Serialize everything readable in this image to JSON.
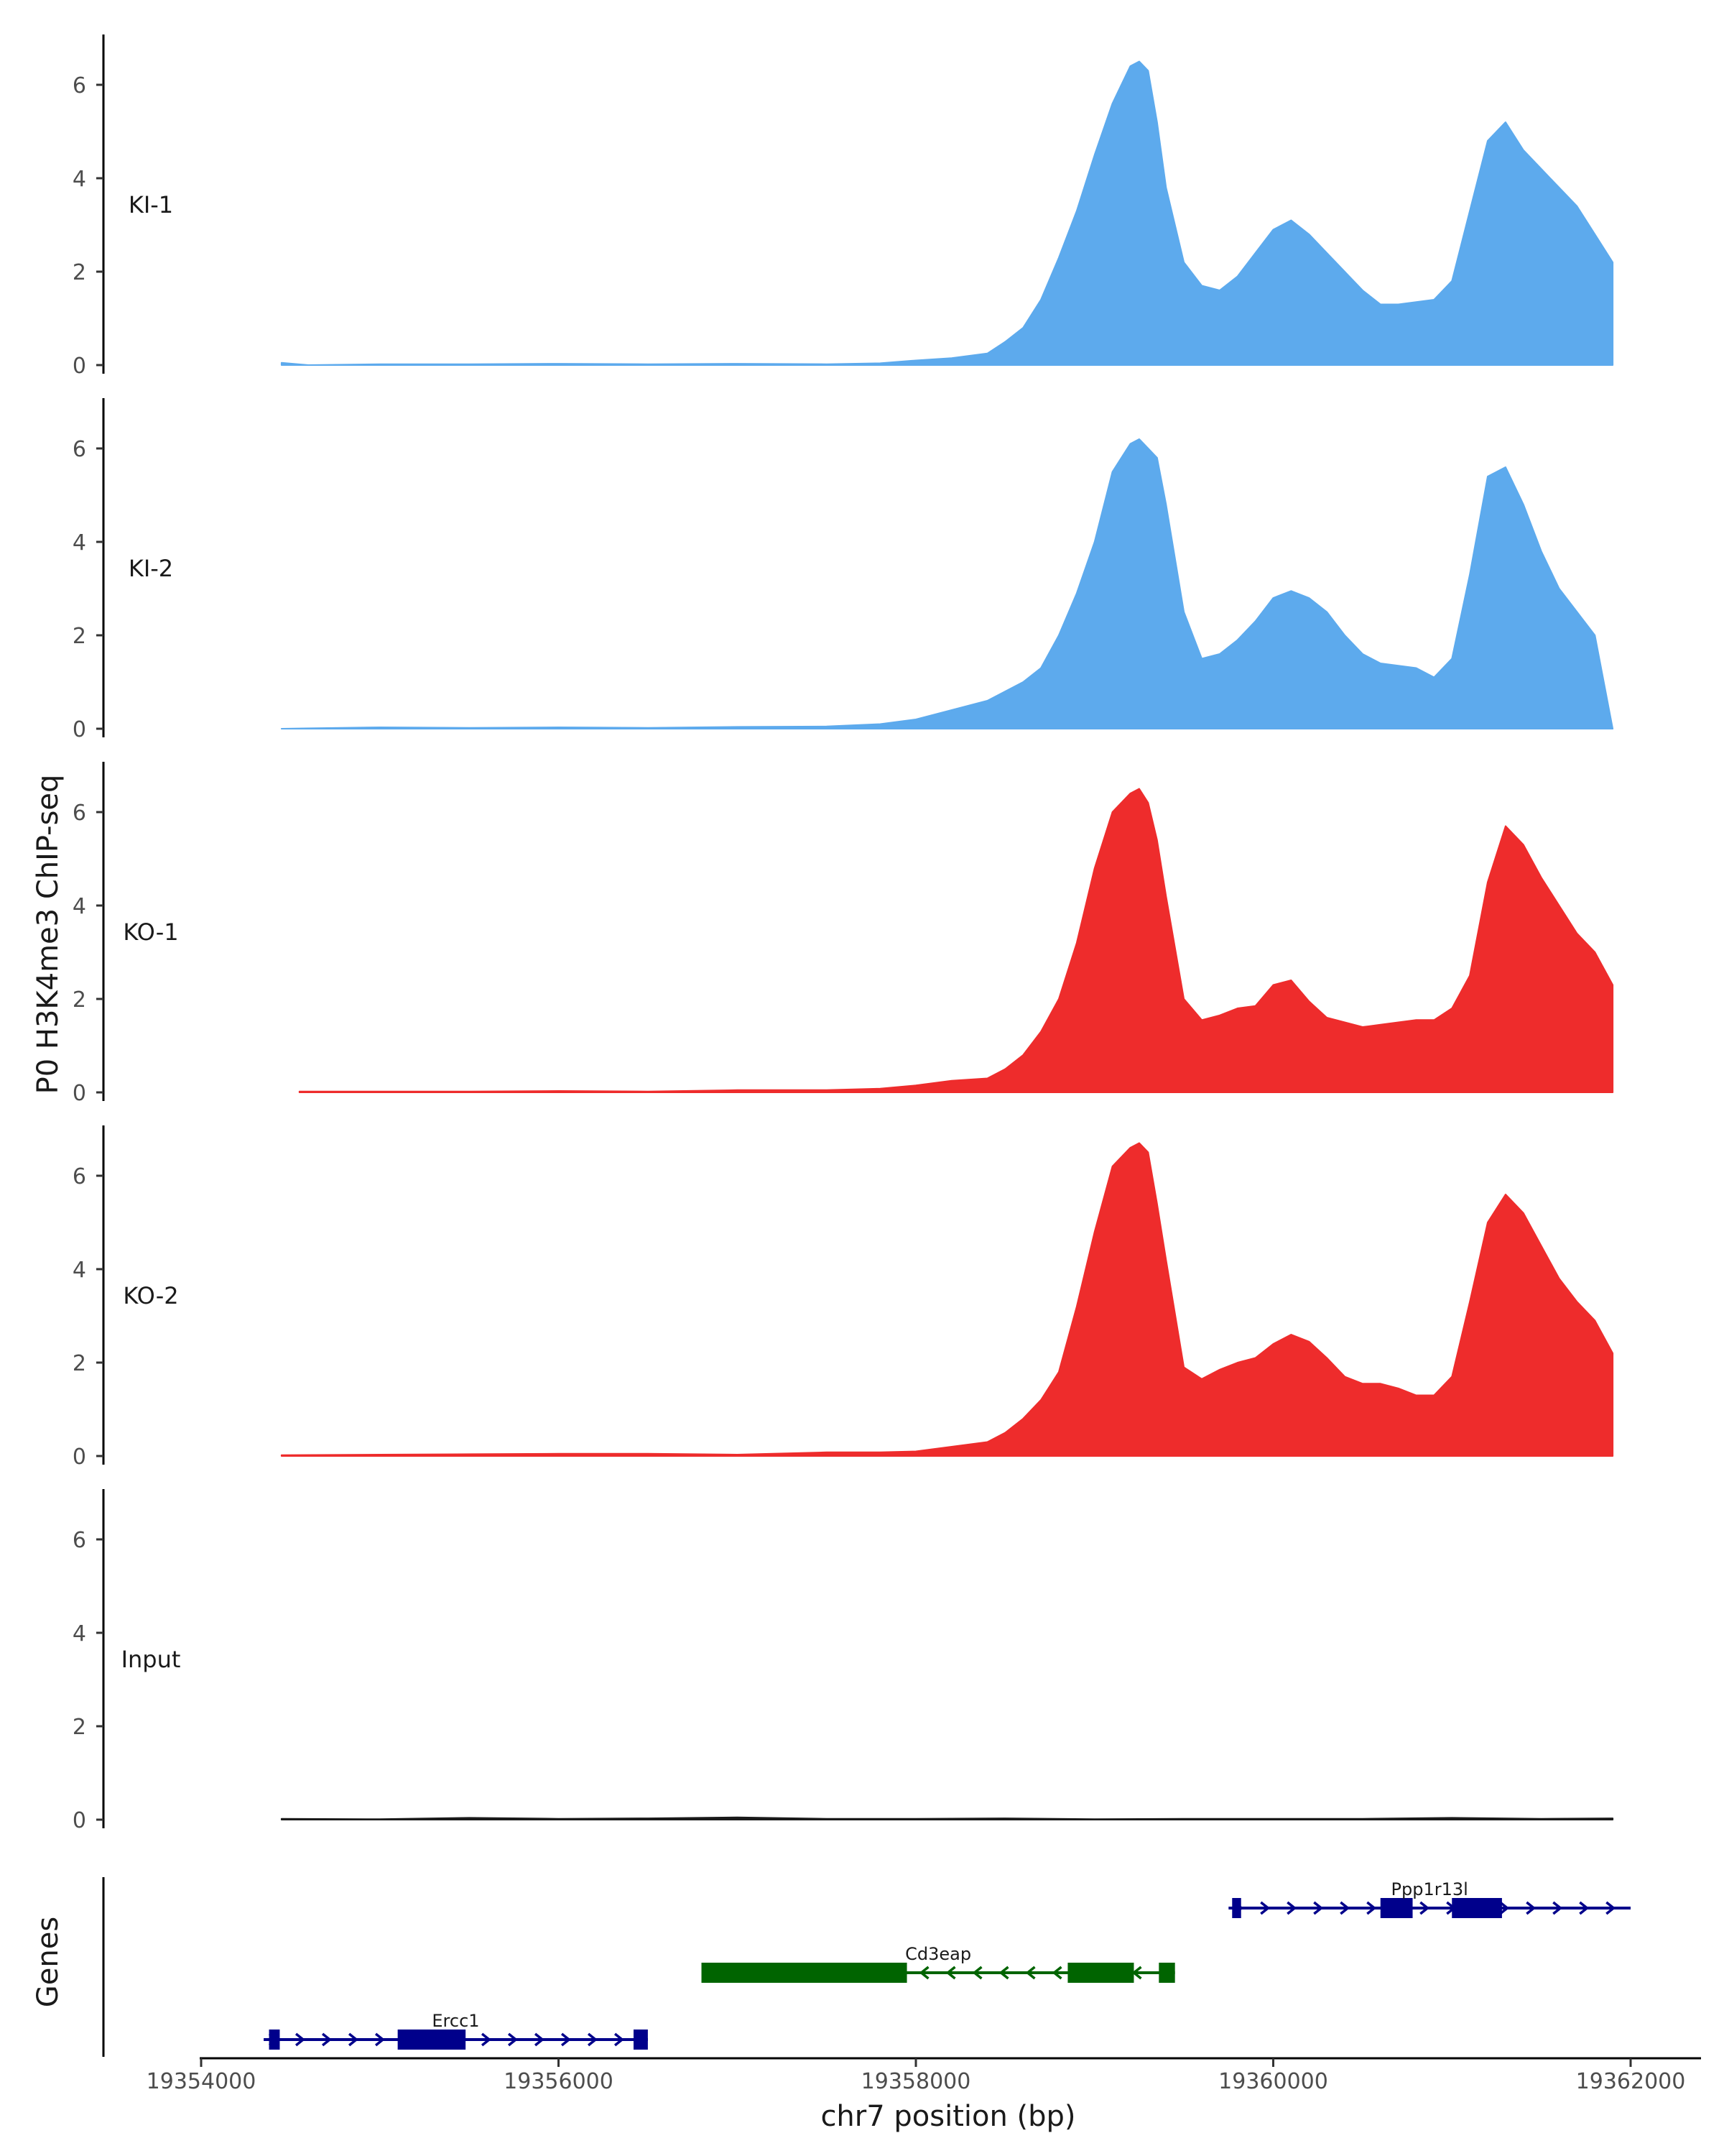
{
  "chart_data": {
    "type": "area",
    "title": "",
    "ylabel": "P0 H3K4me3 ChIP-seq",
    "xlabel": "chr7 position (bp)",
    "genes_label": "Genes",
    "xlim": [
      19353900,
      19362400
    ],
    "ylim": [
      0,
      7
    ],
    "y_ticks": [
      0,
      2,
      4,
      6
    ],
    "x_ticks": [
      19354000,
      19356000,
      19358000,
      19360000,
      19362000
    ],
    "x_tick_labels": [
      "19354000",
      "19356000",
      "19358000",
      "19360000",
      "19362000"
    ],
    "tracks": [
      {
        "name": "KI-1",
        "color": "#5DAAED",
        "x": [
          19354450,
          19354600,
          19355000,
          19355500,
          19356000,
          19356500,
          19357000,
          19357500,
          19357800,
          19358000,
          19358200,
          19358400,
          19358500,
          19358600,
          19358700,
          19358800,
          19358900,
          19359000,
          19359100,
          19359200,
          19359250,
          19359300,
          19359350,
          19359400,
          19359500,
          19359600,
          19359700,
          19359800,
          19359900,
          19360000,
          19360100,
          19360200,
          19360300,
          19360400,
          19360500,
          19360600,
          19360700,
          19360800,
          19360900,
          19361000,
          19361100,
          19361200,
          19361300,
          19361400,
          19361500,
          19361600,
          19361700,
          19361800,
          19361900
        ],
        "y": [
          0.05,
          0,
          0.02,
          0.02,
          0.03,
          0.02,
          0.03,
          0.02,
          0.04,
          0.1,
          0.15,
          0.25,
          0.5,
          0.8,
          1.4,
          2.3,
          3.3,
          4.5,
          5.6,
          6.4,
          6.5,
          6.3,
          5.2,
          3.8,
          2.2,
          1.7,
          1.6,
          1.9,
          2.4,
          2.9,
          3.1,
          2.8,
          2.4,
          2.0,
          1.6,
          1.3,
          1.3,
          1.35,
          1.4,
          1.8,
          3.3,
          4.8,
          5.2,
          4.6,
          4.2,
          3.8,
          3.4,
          2.8,
          2.2
        ]
      },
      {
        "name": "KI-2",
        "color": "#5DAAED",
        "x": [
          19354450,
          19354600,
          19355000,
          19355500,
          19356000,
          19356500,
          19357000,
          19357500,
          19357800,
          19358000,
          19358200,
          19358400,
          19358500,
          19358600,
          19358700,
          19358800,
          19358900,
          19359000,
          19359100,
          19359200,
          19359250,
          19359300,
          19359350,
          19359400,
          19359500,
          19359600,
          19359700,
          19359800,
          19359900,
          19360000,
          19360100,
          19360200,
          19360300,
          19360400,
          19360500,
          19360600,
          19360700,
          19360800,
          19360900,
          19361000,
          19361100,
          19361200,
          19361300,
          19361400,
          19361500,
          19361600,
          19361700,
          19361800,
          19361900
        ],
        "y": [
          0,
          0.01,
          0.03,
          0.02,
          0.03,
          0.02,
          0.04,
          0.05,
          0.1,
          0.2,
          0.4,
          0.6,
          0.8,
          1.0,
          1.3,
          2.0,
          2.9,
          4.0,
          5.5,
          6.1,
          6.2,
          6.0,
          5.8,
          4.8,
          2.5,
          1.5,
          1.6,
          1.9,
          2.3,
          2.8,
          2.95,
          2.8,
          2.5,
          2.0,
          1.6,
          1.4,
          1.35,
          1.3,
          1.1,
          1.5,
          3.3,
          5.4,
          5.6,
          4.8,
          3.8,
          3.0,
          2.5,
          2.0,
          0
        ]
      },
      {
        "name": "KO-1",
        "color": "#EE2C2C",
        "x": [
          19354550,
          19355000,
          19355500,
          19356000,
          19356500,
          19357000,
          19357500,
          19357800,
          19358000,
          19358200,
          19358400,
          19358500,
          19358600,
          19358700,
          19358800,
          19358900,
          19359000,
          19359100,
          19359200,
          19359250,
          19359300,
          19359350,
          19359400,
          19359500,
          19359600,
          19359700,
          19359800,
          19359900,
          19360000,
          19360100,
          19360200,
          19360300,
          19360400,
          19360500,
          19360600,
          19360700,
          19360800,
          19360900,
          19361000,
          19361100,
          19361200,
          19361300,
          19361400,
          19361500,
          19361600,
          19361700,
          19361800,
          19361900
        ],
        "y": [
          0.02,
          0.02,
          0.02,
          0.03,
          0.02,
          0.05,
          0.05,
          0.08,
          0.15,
          0.25,
          0.3,
          0.5,
          0.8,
          1.3,
          2.0,
          3.2,
          4.8,
          6.0,
          6.4,
          6.5,
          6.2,
          5.4,
          4.2,
          2.0,
          1.55,
          1.65,
          1.8,
          1.85,
          2.3,
          2.4,
          1.95,
          1.6,
          1.5,
          1.4,
          1.45,
          1.5,
          1.55,
          1.55,
          1.8,
          2.5,
          4.5,
          5.7,
          5.3,
          4.6,
          4.0,
          3.4,
          3.0,
          2.3
        ]
      },
      {
        "name": "KO-2",
        "color": "#EE2C2C",
        "x": [
          19354450,
          19355000,
          19355500,
          19356000,
          19356500,
          19357000,
          19357500,
          19357800,
          19358000,
          19358200,
          19358400,
          19358500,
          19358600,
          19358700,
          19358800,
          19358900,
          19359000,
          19359100,
          19359200,
          19359250,
          19359300,
          19359350,
          19359400,
          19359500,
          19359600,
          19359700,
          19359800,
          19359900,
          19360000,
          19360100,
          19360200,
          19360300,
          19360400,
          19360500,
          19360600,
          19360700,
          19360800,
          19360900,
          19361000,
          19361100,
          19361200,
          19361300,
          19361400,
          19361500,
          19361600,
          19361700,
          19361800,
          19361900
        ],
        "y": [
          0.02,
          0.03,
          0.04,
          0.05,
          0.05,
          0.03,
          0.08,
          0.08,
          0.1,
          0.2,
          0.3,
          0.5,
          0.8,
          1.2,
          1.8,
          3.2,
          4.8,
          6.2,
          6.6,
          6.7,
          6.5,
          5.4,
          4.2,
          1.9,
          1.65,
          1.85,
          2.0,
          2.1,
          2.4,
          2.6,
          2.45,
          2.1,
          1.7,
          1.55,
          1.55,
          1.45,
          1.3,
          1.3,
          1.7,
          3.3,
          5.0,
          5.6,
          5.2,
          4.5,
          3.8,
          3.3,
          2.9,
          2.2
        ]
      },
      {
        "name": "Input",
        "color": "#1a1a1a",
        "x": [
          19354450,
          19355000,
          19355500,
          19356000,
          19356500,
          19357000,
          19357500,
          19358000,
          19358500,
          19359000,
          19359500,
          19360000,
          19360500,
          19361000,
          19361500,
          19361900
        ],
        "y": [
          0.02,
          0.01,
          0.04,
          0.02,
          0.03,
          0.05,
          0.02,
          0.02,
          0.03,
          0.01,
          0.02,
          0.02,
          0.02,
          0.04,
          0.02,
          0.03
        ]
      }
    ],
    "genes": [
      {
        "name": "Ppp1r13l",
        "strand": "+",
        "color": "#00008B",
        "start": 19359750,
        "end": 19362000,
        "row": 0,
        "exons": [
          [
            19359770,
            19359820
          ],
          [
            19360600,
            19360780
          ],
          [
            19361000,
            19361280
          ]
        ]
      },
      {
        "name": "Cd3eap",
        "strand": "-",
        "color": "#006400",
        "start": 19356800,
        "end": 19359450,
        "row": 1,
        "exons": [
          [
            19356800,
            19357950
          ],
          [
            19358850,
            19359220
          ],
          [
            19359360,
            19359450
          ]
        ]
      },
      {
        "name": "Ercc1",
        "strand": "+",
        "color": "#00008B",
        "start": 19354350,
        "end": 19356500,
        "row": 2,
        "exons": [
          [
            19354380,
            19354440
          ],
          [
            19355100,
            19355480
          ],
          [
            19356420,
            19356500
          ]
        ]
      }
    ]
  }
}
